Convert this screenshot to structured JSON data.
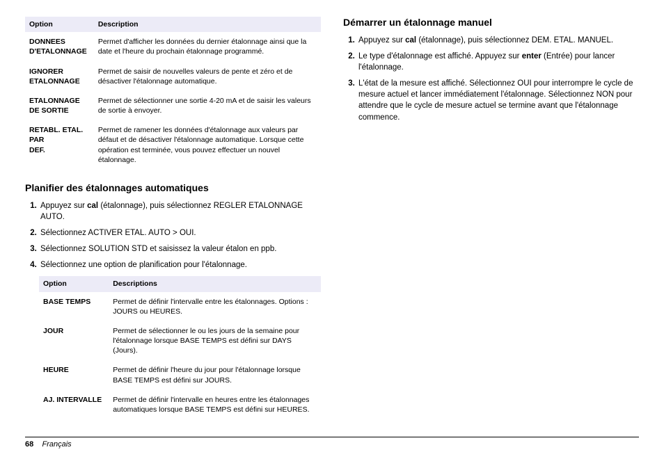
{
  "left": {
    "table1": {
      "head_option": "Option",
      "head_desc": "Description",
      "rows": [
        {
          "opt": "DONNEES D'ETALONNAGE",
          "desc": "Permet d'afficher les données du dernier étalonnage ainsi que la date et l'heure du prochain étalonnage programmé."
        },
        {
          "opt": "IGNORER ETALONNAGE",
          "desc": "Permet de saisir de nouvelles valeurs de pente et zéro et de désactiver l'étalonnage automatique."
        },
        {
          "opt": "ETALONNAGE DE SORTIE",
          "desc": "Permet de sélectionner une sortie 4-20 mA et de saisir les valeurs de sortie à envoyer."
        },
        {
          "opt": "RETABL. ETAL. PAR DEF.",
          "desc": "Permet de ramener les données d'étalonnage aux valeurs par défaut et de désactiver l'étalonnage automatique. Lorsque cette opération est terminée, vous pouvez effectuer un nouvel étalonnage."
        }
      ]
    },
    "heading1": "Planifier des étalonnages automatiques",
    "steps1": [
      {
        "pre": "Appuyez sur ",
        "bold": "cal",
        "post": " (étalonnage), puis sélectionnez REGLER ETALONNAGE AUTO."
      },
      {
        "text": "Sélectionnez ACTIVER ETAL. AUTO > OUI."
      },
      {
        "text": "Sélectionnez SOLUTION STD et saisissez la valeur étalon en ppb."
      },
      {
        "text": "Sélectionnez une option de planification pour l'étalonnage."
      }
    ],
    "table2": {
      "head_option": "Option",
      "head_desc": "Descriptions",
      "rows": [
        {
          "opt": "BASE TEMPS",
          "desc": "Permet de définir l'intervalle entre les étalonnages. Options : JOURS ou HEURES."
        },
        {
          "opt": "JOUR",
          "desc": "Permet de sélectionner le ou les jours de la semaine pour l'étalonnage lorsque BASE TEMPS est défini sur DAYS (Jours)."
        },
        {
          "opt": "HEURE",
          "desc": "Permet de définir l'heure du jour pour l'étalonnage lorsque BASE TEMPS est défini sur JOURS."
        },
        {
          "opt": "AJ. INTERVALLE",
          "desc": "Permet de définir l'intervalle en heures entre les étalonnages automatiques lorsque BASE TEMPS est défini sur HEURES."
        }
      ]
    }
  },
  "right": {
    "heading": "Démarrer un étalonnage manuel",
    "steps": [
      {
        "pre": "Appuyez sur ",
        "bold": "cal",
        "post": " (étalonnage), puis sélectionnez DEM. ETAL. MANUEL."
      },
      {
        "pre": "Le type d'étalonnage est affiché. Appuyez sur ",
        "bold": "enter",
        "post": " (Entrée) pour lancer l'étalonnage."
      },
      {
        "text": "L'état de la mesure est affiché. Sélectionnez OUI pour interrompre le cycle de mesure actuel et lancer immédiatement l'étalonnage. Sélectionnez NON pour attendre que le cycle de mesure actuel se termine avant que l'étalonnage commence."
      }
    ]
  },
  "footer": {
    "page": "68",
    "lang": "Français"
  }
}
